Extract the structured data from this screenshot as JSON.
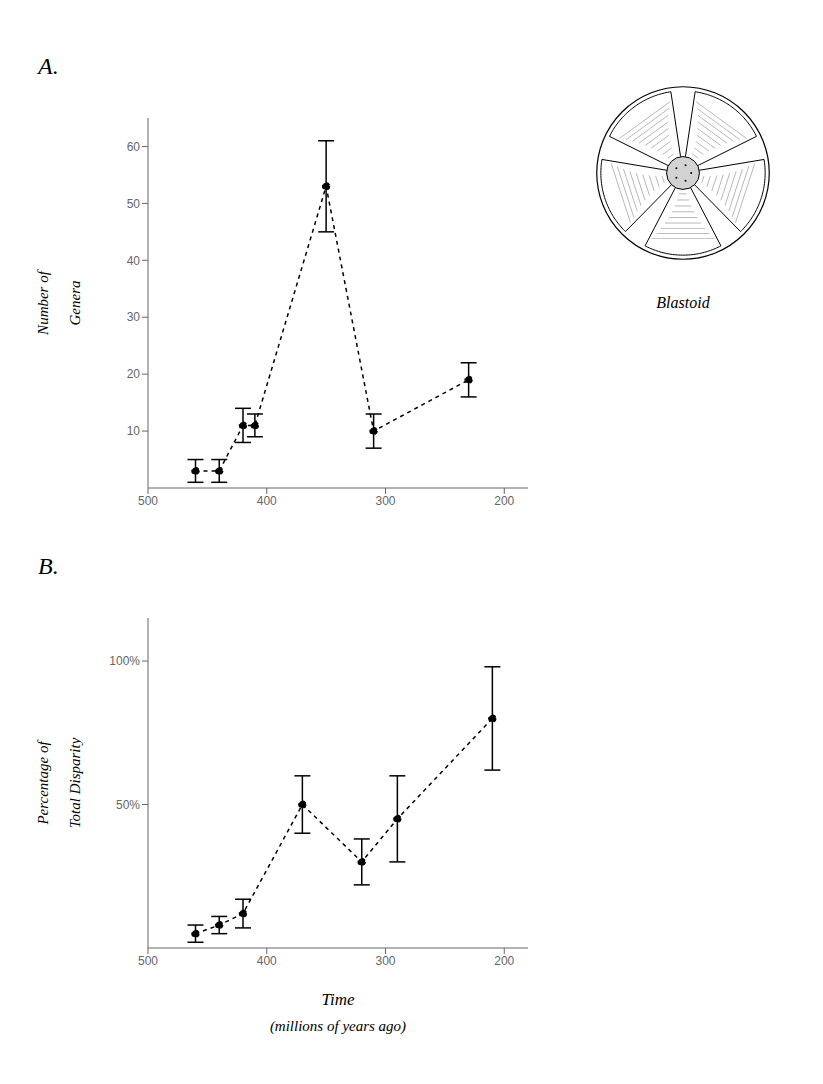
{
  "chart_data": [
    {
      "type": "line",
      "title": "A.",
      "ylabel": [
        "Number of",
        "Genera"
      ],
      "annotations": [
        "Blastoid"
      ],
      "x": [
        460,
        440,
        420,
        410,
        350,
        310,
        230
      ],
      "values": [
        3,
        3,
        11,
        11,
        53,
        10,
        19
      ],
      "yerr": [
        2,
        2,
        3,
        2,
        8,
        3,
        3
      ],
      "color": "#000000",
      "marker": "o",
      "line_style": "dashed",
      "xlim": [
        500,
        180
      ],
      "ylim": [
        0,
        65
      ],
      "xticks": [
        500,
        400,
        300,
        200
      ],
      "yticks": [
        10,
        20,
        30,
        40,
        50,
        60
      ],
      "grid": false
    },
    {
      "type": "line",
      "title": "B.",
      "ylabel": [
        "Percentage of",
        "Total Disparity"
      ],
      "xlabel": [
        "Time",
        "(millions of years ago)"
      ],
      "x": [
        460,
        440,
        420,
        370,
        320,
        290,
        210
      ],
      "values": [
        5,
        8,
        12,
        50,
        30,
        45,
        80
      ],
      "yerr": [
        3,
        3,
        5,
        10,
        8,
        15,
        18
      ],
      "color": "#000000",
      "marker": "o",
      "line_style": "dashed",
      "xlim": [
        500,
        180
      ],
      "ylim": [
        0,
        115
      ],
      "xticks": [
        500,
        400,
        300,
        200
      ],
      "yticks": [
        {
          "value": 50,
          "label": "50%"
        },
        {
          "value": 100,
          "label": "100%"
        }
      ],
      "grid": false
    }
  ]
}
